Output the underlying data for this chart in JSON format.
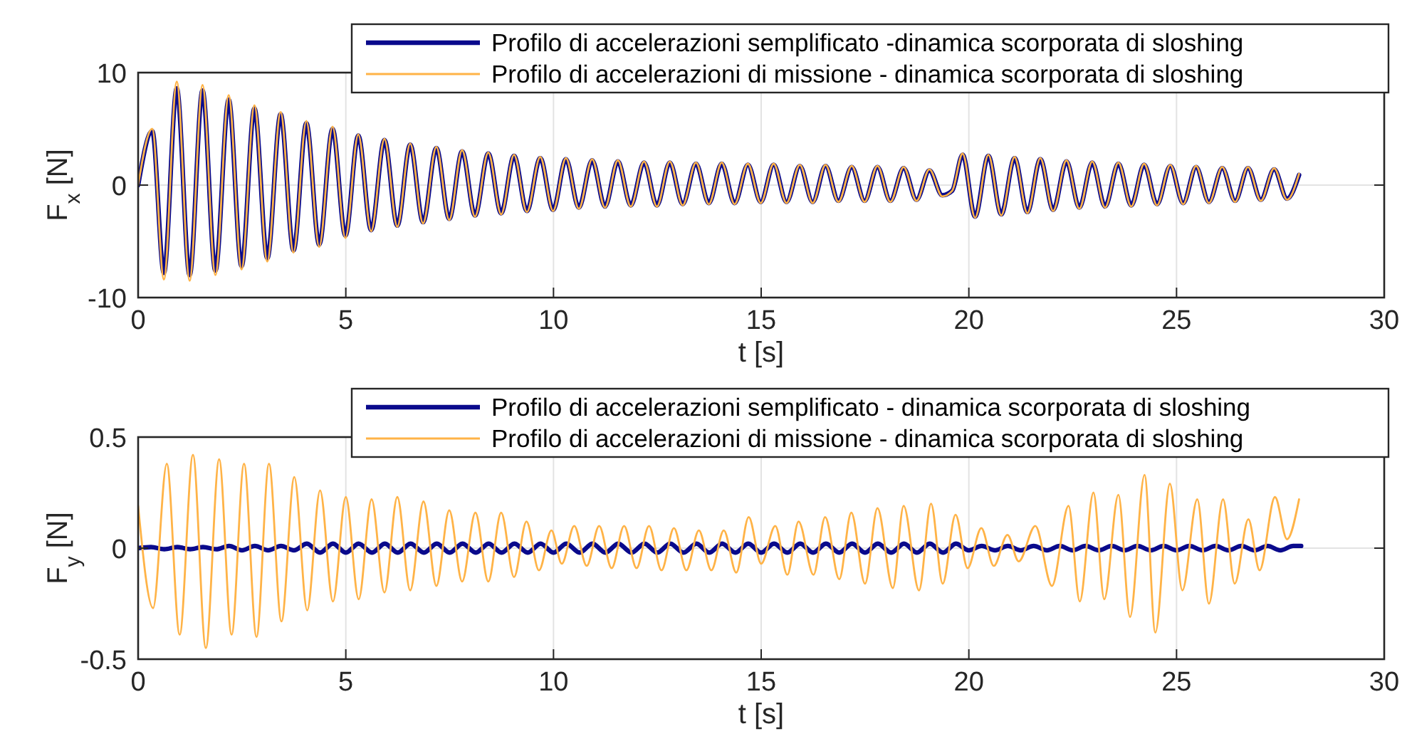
{
  "chart_data": [
    {
      "type": "line",
      "xlabel": "t [s]",
      "ylabel": "F$_{x}$ [N]",
      "xlim": [
        0,
        30
      ],
      "ylim": [
        -10,
        10
      ],
      "xticks": [
        0,
        5,
        10,
        15,
        20,
        25,
        30
      ],
      "yticks": [
        -10,
        0,
        10
      ],
      "grid": true,
      "legend": "top right",
      "x": [
        0,
        0.34,
        0.62,
        0.93,
        1.24,
        1.55,
        1.86,
        2.18,
        2.49,
        2.8,
        3.11,
        3.43,
        3.74,
        4.05,
        4.36,
        4.68,
        4.99,
        5.3,
        5.61,
        5.93,
        6.24,
        6.55,
        6.86,
        7.18,
        7.49,
        7.8,
        8.11,
        8.43,
        8.74,
        9.05,
        9.36,
        9.68,
        9.99,
        10.3,
        10.61,
        10.93,
        11.24,
        11.55,
        11.86,
        12.18,
        12.49,
        12.8,
        13.11,
        13.43,
        13.74,
        14.05,
        14.36,
        14.68,
        14.99,
        15.3,
        15.61,
        15.93,
        16.24,
        16.55,
        16.86,
        17.18,
        17.49,
        17.8,
        18.11,
        18.43,
        18.74,
        19.05,
        19.36,
        19.6,
        19.85,
        20.15,
        20.47,
        20.78,
        21.1,
        21.41,
        21.72,
        22.03,
        22.35,
        22.66,
        22.97,
        23.28,
        23.6,
        23.91,
        24.22,
        24.53,
        24.85,
        25.16,
        25.47,
        25.78,
        26.1,
        26.41,
        26.72,
        27.03,
        27.35,
        27.66,
        27.95
      ],
      "series": [
        {
          "name": "Profilo di accelerazioni semplificato -dinamica scorporata di sloshing",
          "color": "#0a0a8c",
          "values": [
            0,
            4.8,
            -7.8,
            8.6,
            -8,
            8.4,
            -7.6,
            7.6,
            -7.2,
            6.8,
            -6.5,
            6.3,
            -5.8,
            5.5,
            -5.3,
            5,
            -4.5,
            4.4,
            -4,
            4,
            -3.6,
            3.6,
            -3.3,
            3.3,
            -3,
            3,
            -2.7,
            2.8,
            -2.5,
            2.6,
            -2.3,
            2.4,
            -2.2,
            2.3,
            -2,
            2.2,
            -1.9,
            2.1,
            -1.8,
            2,
            -1.8,
            2,
            -1.7,
            1.9,
            -1.6,
            1.9,
            -1.6,
            1.8,
            -1.5,
            1.8,
            -1.5,
            1.7,
            -1.5,
            1.7,
            -1.4,
            1.6,
            -1.4,
            1.6,
            -1.4,
            1.5,
            -1.3,
            1.3,
            -0.9,
            -0.5,
            2.7,
            -2.8,
            2.6,
            -2.6,
            2.4,
            -2.4,
            2.3,
            -2.2,
            2.1,
            -2,
            2,
            -1.9,
            1.9,
            -1.8,
            1.8,
            -1.7,
            1.7,
            -1.6,
            1.6,
            -1.5,
            1.5,
            -1.4,
            1.5,
            -1.3,
            1.4,
            -1.2,
            0.9
          ]
        },
        {
          "name": "Profilo di accelerazioni di missione - dinamica scorporata di sloshing",
          "color": "#ffb347",
          "values": [
            0,
            5,
            -8.4,
            9.2,
            -8.5,
            8.9,
            -8,
            8,
            -7.5,
            7.1,
            -6.8,
            6.5,
            -6,
            5.7,
            -5.5,
            5.2,
            -4.7,
            4.5,
            -4.1,
            4.1,
            -3.7,
            3.7,
            -3.4,
            3.4,
            -3.1,
            3.1,
            -2.8,
            2.9,
            -2.6,
            2.7,
            -2.4,
            2.5,
            -2.3,
            2.4,
            -2.1,
            2.3,
            -2,
            2.2,
            -1.9,
            2.1,
            -1.9,
            2.1,
            -1.8,
            2,
            -1.7,
            2,
            -1.7,
            1.9,
            -1.6,
            1.9,
            -1.6,
            1.8,
            -1.6,
            1.8,
            -1.5,
            1.7,
            -1.5,
            1.7,
            -1.5,
            1.6,
            -1.4,
            1.4,
            -1,
            -0.5,
            2.8,
            -2.9,
            2.7,
            -2.7,
            2.5,
            -2.5,
            2.4,
            -2.3,
            2.2,
            -2.1,
            2.1,
            -2,
            2,
            -1.9,
            1.9,
            -1.8,
            1.8,
            -1.7,
            1.7,
            -1.6,
            1.6,
            -1.5,
            1.6,
            -1.4,
            1.5,
            -1.3,
            1
          ]
        }
      ]
    },
    {
      "type": "line",
      "xlabel": "t [s]",
      "ylabel": "F$_{y}$ [N]",
      "xlim": [
        0,
        30
      ],
      "ylim": [
        -0.5,
        0.5
      ],
      "xticks": [
        0,
        5,
        10,
        15,
        20,
        25,
        30
      ],
      "yticks": [
        -0.5,
        0,
        0.5
      ],
      "grid": true,
      "legend": "top right",
      "series": [
        {
          "name": "Profilo di accelerazioni semplificato - dinamica scorporata di sloshing",
          "color": "#0a0a8c",
          "x": [
            0,
            0.31,
            0.63,
            0.94,
            1.25,
            1.56,
            1.88,
            2.19,
            2.5,
            2.81,
            3.13,
            3.44,
            3.75,
            4.06,
            4.38,
            4.69,
            5,
            5.31,
            5.63,
            5.94,
            6.25,
            6.56,
            6.88,
            7.19,
            7.5,
            7.81,
            8.13,
            8.44,
            8.75,
            9.06,
            9.38,
            9.69,
            10,
            10.31,
            10.63,
            10.94,
            11.25,
            11.56,
            11.88,
            12.19,
            12.5,
            12.81,
            13.13,
            13.44,
            13.75,
            14.06,
            14.38,
            14.69,
            15,
            15.31,
            15.63,
            15.94,
            16.25,
            16.56,
            16.88,
            17.19,
            17.5,
            17.81,
            18.13,
            18.44,
            18.75,
            19.06,
            19.38,
            19.69,
            20,
            20.31,
            20.63,
            20.94,
            21.25,
            21.56,
            21.88,
            22.19,
            22.5,
            22.81,
            23.13,
            23.44,
            23.75,
            24.06,
            24.38,
            24.69,
            25,
            25.31,
            25.63,
            25.94,
            26.25,
            26.56,
            26.88,
            27.19,
            27.5,
            27.81,
            28
          ],
          "values": [
            0,
            0.005,
            -0.005,
            0.005,
            -0.005,
            0.005,
            -0.005,
            0.01,
            -0.01,
            0.01,
            -0.01,
            0.01,
            -0.01,
            0.02,
            -0.02,
            0.02,
            -0.02,
            0.02,
            -0.02,
            0.02,
            -0.02,
            0.02,
            -0.02,
            0.02,
            -0.02,
            0.02,
            -0.02,
            0.02,
            -0.02,
            0.02,
            -0.02,
            0.02,
            -0.02,
            0.02,
            -0.02,
            0.02,
            -0.02,
            0.02,
            -0.02,
            0.02,
            -0.02,
            0.02,
            -0.02,
            0.02,
            -0.02,
            0.02,
            -0.02,
            0.02,
            -0.02,
            0.02,
            -0.02,
            0.02,
            -0.02,
            0.02,
            -0.02,
            0.02,
            -0.02,
            0.02,
            -0.02,
            0.02,
            -0.02,
            0.02,
            -0.02,
            0.02,
            -0.01,
            0.01,
            -0.01,
            0.01,
            -0.01,
            0.01,
            -0.01,
            0.01,
            -0.01,
            0.01,
            -0.01,
            0.01,
            -0.01,
            0.01,
            -0.01,
            0.01,
            -0.01,
            0.01,
            -0.01,
            0.01,
            -0.01,
            0.01,
            -0.01,
            0.01,
            -0.01,
            0.01,
            0.01
          ]
        },
        {
          "name": "Profilo di accelerazioni di missione - dinamica scorporata di sloshing",
          "color": "#ffb347",
          "x": [
            0,
            0.36,
            0.69,
            1.0,
            1.32,
            1.63,
            1.95,
            2.25,
            2.55,
            2.85,
            3.15,
            3.45,
            3.76,
            4.07,
            4.38,
            4.69,
            5.0,
            5.31,
            5.62,
            5.93,
            6.24,
            6.55,
            6.87,
            7.18,
            7.49,
            7.8,
            8.12,
            8.43,
            8.74,
            9.05,
            9.35,
            9.65,
            9.95,
            10.2,
            10.5,
            10.8,
            11.1,
            11.4,
            11.7,
            12.0,
            12.3,
            12.6,
            12.9,
            13.2,
            13.5,
            13.8,
            14.1,
            14.4,
            14.7,
            15.0,
            15.34,
            15.63,
            15.9,
            16.26,
            16.54,
            16.88,
            17.17,
            17.5,
            17.8,
            18.17,
            18.43,
            18.8,
            19.09,
            19.37,
            19.68,
            19.97,
            20.3,
            20.6,
            20.93,
            21.2,
            21.6,
            22.0,
            22.4,
            22.67,
            23.0,
            23.26,
            23.6,
            23.88,
            24.23,
            24.49,
            24.84,
            25.14,
            25.5,
            25.78,
            26.12,
            26.4,
            26.73,
            27.0,
            27.37,
            27.66,
            27.95
          ],
          "values": [
            0.19,
            -0.27,
            0.38,
            -0.39,
            0.42,
            -0.45,
            0.4,
            -0.39,
            0.38,
            -0.4,
            0.38,
            -0.33,
            0.32,
            -0.28,
            0.26,
            -0.24,
            0.23,
            -0.23,
            0.22,
            -0.2,
            0.23,
            -0.19,
            0.21,
            -0.17,
            0.17,
            -0.15,
            0.16,
            -0.15,
            0.16,
            -0.13,
            0.12,
            -0.1,
            0.08,
            -0.07,
            0.1,
            -0.08,
            0.1,
            -0.09,
            0.1,
            -0.09,
            0.1,
            -0.1,
            0.09,
            -0.1,
            0.08,
            -0.1,
            0.08,
            -0.11,
            0.14,
            -0.07,
            0.1,
            -0.12,
            0.12,
            -0.12,
            0.14,
            -0.14,
            0.16,
            -0.16,
            0.18,
            -0.18,
            0.19,
            -0.19,
            0.2,
            -0.16,
            0.15,
            -0.09,
            0.09,
            -0.08,
            0.06,
            -0.06,
            0.1,
            -0.17,
            0.19,
            -0.24,
            0.25,
            -0.23,
            0.24,
            -0.31,
            0.33,
            -0.38,
            0.29,
            -0.19,
            0.22,
            -0.25,
            0.22,
            -0.16,
            0.13,
            -0.1,
            0.23,
            0.04,
            0.22
          ]
        }
      ]
    }
  ]
}
